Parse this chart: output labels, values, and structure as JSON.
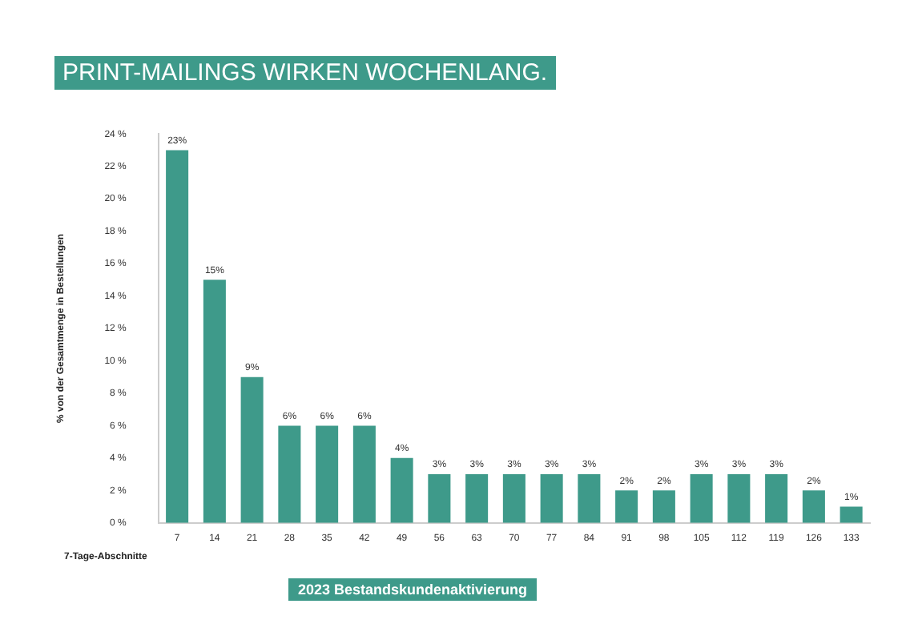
{
  "chart_data": {
    "type": "bar",
    "title": "PRINT-MAILINGS WIRKEN WOCHENLANG.",
    "xlabel": "7-Tage-Abschnitte",
    "ylabel": "% von der Gesamtmenge in Bestellungen",
    "annotations": [
      "2023 Bestandskundenaktivierung"
    ],
    "categories": [
      "7",
      "14",
      "21",
      "28",
      "35",
      "42",
      "49",
      "56",
      "63",
      "70",
      "77",
      "84",
      "91",
      "98",
      "105",
      "112",
      "119",
      "126",
      "133"
    ],
    "values": [
      23,
      15,
      9,
      6,
      6,
      6,
      4,
      3,
      3,
      3,
      3,
      3,
      2,
      2,
      3,
      3,
      3,
      2,
      1
    ],
    "value_labels": [
      "23%",
      "15%",
      "9%",
      "6%",
      "6%",
      "6%",
      "4%",
      "3%",
      "3%",
      "3%",
      "3%",
      "3%",
      "2%",
      "2%",
      "3%",
      "3%",
      "3%",
      "2%",
      "1%"
    ],
    "color": "#3e9a8a",
    "ylim": [
      0,
      24
    ],
    "yticks": [
      {
        "value": 0,
        "label": "0 %"
      },
      {
        "value": 2,
        "label": "2 %"
      },
      {
        "value": 4,
        "label": "4 %"
      },
      {
        "value": 6,
        "label": "6 %"
      },
      {
        "value": 8,
        "label": "8 %"
      },
      {
        "value": 10,
        "label": "10 %"
      },
      {
        "value": 12,
        "label": "12 %"
      },
      {
        "value": 14,
        "label": "14 %"
      },
      {
        "value": 16,
        "label": "16 %"
      },
      {
        "value": 18,
        "label": "18 %"
      },
      {
        "value": 20,
        "label": "20 %"
      },
      {
        "value": 22,
        "label": "22 %"
      },
      {
        "value": 24,
        "label": "24 %"
      }
    ],
    "grid": false,
    "legend": false
  }
}
